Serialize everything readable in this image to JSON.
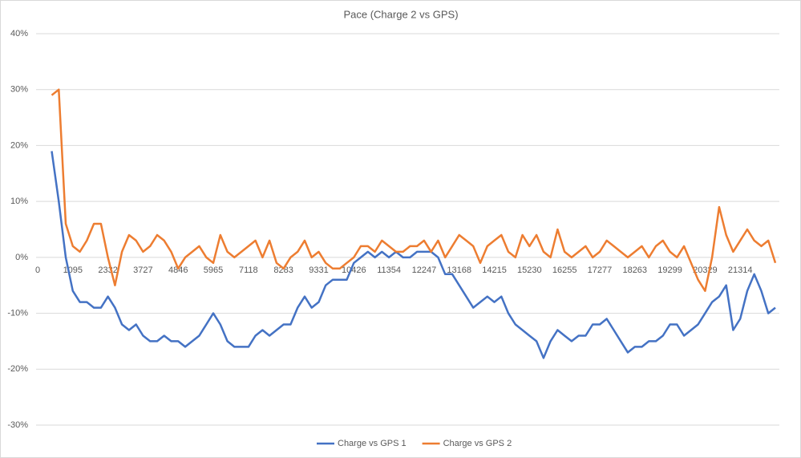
{
  "chart_data": {
    "type": "line",
    "title": "Pace (Charge 2 vs GPS)",
    "categories": [
      "0",
      null,
      null,
      null,
      null,
      "1095",
      null,
      null,
      null,
      null,
      "2332",
      null,
      null,
      null,
      null,
      "3727",
      null,
      null,
      null,
      null,
      "4846",
      null,
      null,
      null,
      null,
      "5965",
      null,
      null,
      null,
      null,
      "7118",
      null,
      null,
      null,
      null,
      "8283",
      null,
      null,
      null,
      null,
      "9331",
      null,
      null,
      null,
      null,
      "10426",
      null,
      null,
      null,
      null,
      "11354",
      null,
      null,
      null,
      null,
      "12247",
      null,
      null,
      null,
      null,
      "13168",
      null,
      null,
      null,
      null,
      "14215",
      null,
      null,
      null,
      null,
      "15230",
      null,
      null,
      null,
      null,
      "16255",
      null,
      null,
      null,
      null,
      "17277",
      null,
      null,
      null,
      null,
      "18263",
      null,
      null,
      null,
      null,
      "19299",
      null,
      null,
      null,
      null,
      "20329",
      null,
      null,
      null,
      null,
      "21314",
      null,
      null,
      null,
      null,
      null
    ],
    "series": [
      {
        "name": "Charge vs GPS 1",
        "color": "#4472c4",
        "values": [
          null,
          null,
          19,
          10,
          0,
          -6,
          -8,
          -8,
          -9,
          -9,
          -7,
          -9,
          -12,
          -13,
          -12,
          -14,
          -15,
          -15,
          -14,
          -15,
          -15,
          -16,
          -15,
          -14,
          -12,
          -10,
          -12,
          -15,
          -16,
          -16,
          -16,
          -14,
          -13,
          -14,
          -13,
          -12,
          -12,
          -9,
          -7,
          -9,
          -8,
          -5,
          -4,
          -4,
          -4,
          -1,
          0,
          1,
          0,
          1,
          0,
          1,
          0,
          0,
          1,
          1,
          1,
          0,
          -3,
          -3,
          -5,
          -7,
          -9,
          -8,
          -7,
          -8,
          -7,
          -10,
          -12,
          -13,
          -14,
          -15,
          -18,
          -15,
          -13,
          -14,
          -15,
          -14,
          -14,
          -12,
          -12,
          -11,
          -13,
          -15,
          -17,
          -16,
          -16,
          -15,
          -15,
          -14,
          -12,
          -12,
          -14,
          -13,
          -12,
          -10,
          -8,
          -7,
          -5,
          -13,
          -11,
          -6,
          -3,
          -6,
          -10,
          -9
        ]
      },
      {
        "name": "Charge vs GPS 2",
        "color": "#ed7d31",
        "values": [
          null,
          null,
          29,
          30,
          6,
          2,
          1,
          3,
          6,
          6,
          0,
          -5,
          1,
          4,
          3,
          1,
          2,
          4,
          3,
          1,
          -2,
          0,
          1,
          2,
          0,
          -1,
          4,
          1,
          0,
          1,
          2,
          3,
          0,
          3,
          -1,
          -2,
          0,
          1,
          3,
          0,
          1,
          -1,
          -2,
          -2,
          -1,
          0,
          2,
          2,
          1,
          3,
          2,
          1,
          1,
          2,
          2,
          3,
          1,
          3,
          0,
          2,
          4,
          3,
          2,
          -1,
          2,
          3,
          4,
          1,
          0,
          4,
          2,
          4,
          1,
          0,
          5,
          1,
          0,
          1,
          2,
          0,
          1,
          3,
          2,
          1,
          0,
          1,
          2,
          0,
          2,
          3,
          1,
          0,
          2,
          -1,
          -4,
          -6,
          0,
          9,
          4,
          1,
          3,
          5,
          3,
          2,
          3,
          -1
        ]
      }
    ],
    "ylim": [
      -30,
      40
    ],
    "yticks": [
      {
        "value": -30,
        "label": "-30%"
      },
      {
        "value": -20,
        "label": "-20%"
      },
      {
        "value": -10,
        "label": "-10%"
      },
      {
        "value": 0,
        "label": "0%"
      },
      {
        "value": 10,
        "label": "10%"
      },
      {
        "value": 20,
        "label": "20%"
      },
      {
        "value": 30,
        "label": "30%"
      },
      {
        "value": 40,
        "label": "40%"
      }
    ],
    "grid": true,
    "legend": "bottom"
  }
}
